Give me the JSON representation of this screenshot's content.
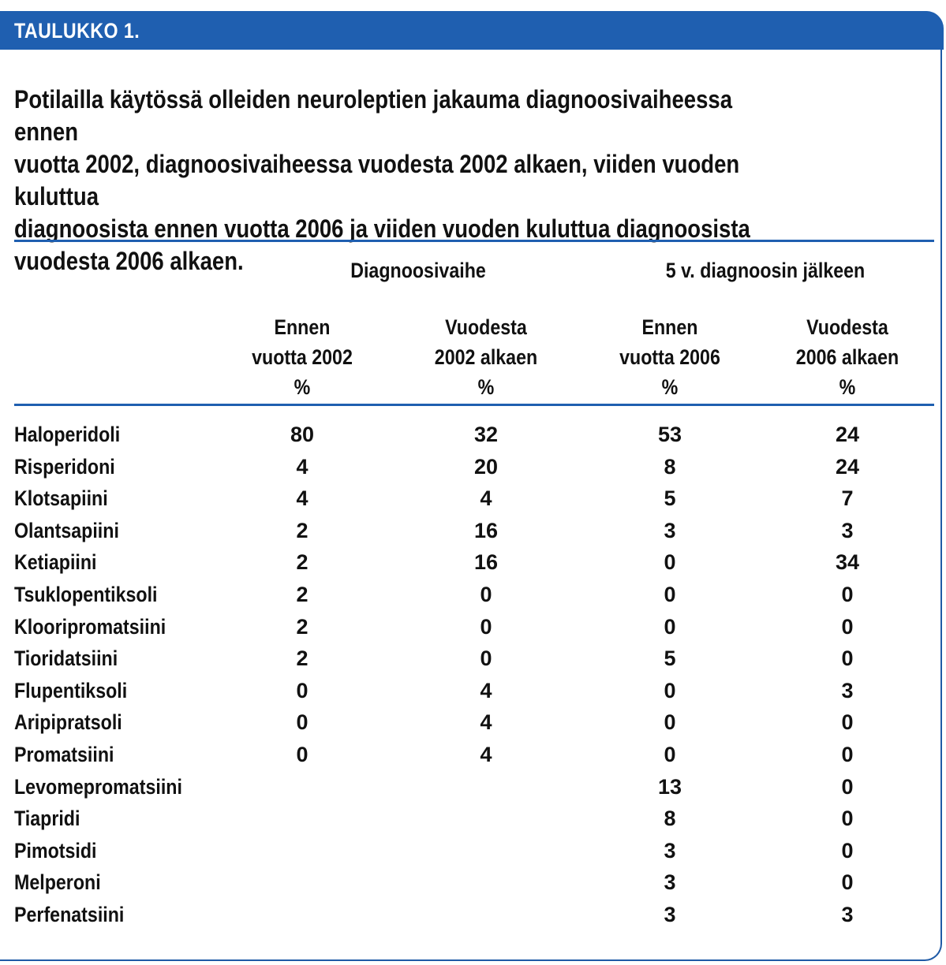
{
  "table_label": "TAULUKKO  1.",
  "caption": "Potilailla käytössä olleiden neuroleptien jakauma diagnoosivaiheessa ennen\nvuotta 2002,  diagnoosivaiheessa vuodesta 2002 alkaen, viiden vuoden kuluttua\ndiagnoosista ennen vuotta 2006 ja viiden vuoden kuluttua diagnoosista\nvuodesta 2006 alkaen.",
  "group_headers": [
    "Diagnoosivaihe",
    "5 v. diagnoosin jälkeen"
  ],
  "column_headers": [
    {
      "line1": "Ennen",
      "line2": "vuotta 2002",
      "unit": "%"
    },
    {
      "line1": "Vuodesta",
      "line2": "2002 alkaen",
      "unit": "%"
    },
    {
      "line1": "Ennen",
      "line2": "vuotta 2006",
      "unit": "%"
    },
    {
      "line1": "Vuodesta",
      "line2": "2006 alkaen",
      "unit": "%"
    }
  ],
  "rows": [
    {
      "name": "Haloperidoli",
      "values": [
        "80",
        "32",
        "53",
        "24"
      ]
    },
    {
      "name": "Risperidoni",
      "values": [
        "4",
        "20",
        "8",
        "24"
      ]
    },
    {
      "name": "Klotsapiini",
      "values": [
        "4",
        "4",
        "5",
        "7"
      ]
    },
    {
      "name": "Olantsapiini",
      "values": [
        "2",
        "16",
        "3",
        "3"
      ]
    },
    {
      "name": "Ketiapiini",
      "values": [
        "2",
        "16",
        "0",
        "34"
      ]
    },
    {
      "name": "Tsuklopentiksoli",
      "values": [
        "2",
        "0",
        "0",
        "0"
      ]
    },
    {
      "name": "Klooripromatsiini",
      "values": [
        "2",
        "0",
        "0",
        "0"
      ]
    },
    {
      "name": "Tioridatsiini",
      "values": [
        "2",
        "0",
        "5",
        "0"
      ]
    },
    {
      "name": "Flupentiksoli",
      "values": [
        "0",
        "4",
        "0",
        "3"
      ]
    },
    {
      "name": "Aripipratsoli",
      "values": [
        "0",
        "4",
        "0",
        "0"
      ]
    },
    {
      "name": "Promatsiini",
      "values": [
        "0",
        "4",
        "0",
        "0"
      ]
    },
    {
      "name": "Levomepromatsiini",
      "values": [
        "",
        "",
        "13",
        "0"
      ]
    },
    {
      "name": "Tiapridi",
      "values": [
        "",
        "",
        "8",
        "0"
      ]
    },
    {
      "name": "Pimotsidi",
      "values": [
        "",
        "",
        "3",
        "0"
      ]
    },
    {
      "name": "Melperoni",
      "values": [
        "",
        "",
        "3",
        "0"
      ]
    },
    {
      "name": "Perfenatsiini",
      "values": [
        "",
        "",
        "3",
        "3"
      ]
    }
  ],
  "colors": {
    "accent": "#1f5fb0",
    "text": "#111111",
    "header_text": "#ffffff"
  }
}
